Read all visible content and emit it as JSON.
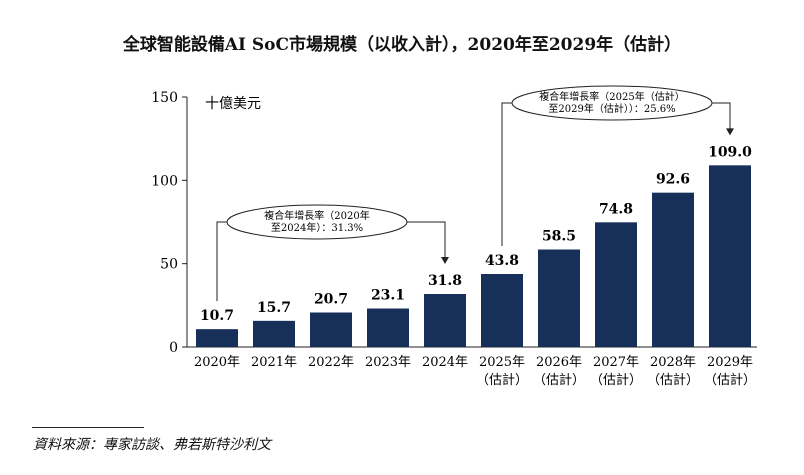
{
  "chart_data": {
    "type": "bar",
    "title": "全球智能設備AI SoC市場規模（以收入計），2020年至2029年（估計）",
    "unit_label": "十億美元",
    "categories": [
      [
        "2020年"
      ],
      [
        "2021年"
      ],
      [
        "2022年"
      ],
      [
        "2023年"
      ],
      [
        "2024年"
      ],
      [
        "2025年",
        "（估計）"
      ],
      [
        "2026年",
        "（估計）"
      ],
      [
        "2027年",
        "（估計）"
      ],
      [
        "2028年",
        "（估計）"
      ],
      [
        "2029年",
        "（估計）"
      ]
    ],
    "values": [
      10.7,
      15.7,
      20.7,
      23.1,
      31.8,
      43.8,
      58.5,
      74.8,
      92.6,
      109.0
    ],
    "value_labels": [
      "10.7",
      "15.7",
      "20.7",
      "23.1",
      "31.8",
      "43.8",
      "58.5",
      "74.8",
      "92.6",
      "109.0"
    ],
    "ylim": [
      0,
      150
    ],
    "yticks": [
      0,
      50,
      100,
      150
    ],
    "bar_color": "#16305a",
    "grid": false,
    "annotations": [
      {
        "lines": [
          "複合年增長率（2020年",
          "至2024年）：31.3%"
        ],
        "from_index": 0,
        "to_index": 4
      },
      {
        "lines": [
          "複合年增長率（2025年（估計）",
          "至2029年（估計））：25.6%"
        ],
        "from_index": 5,
        "to_index": 9
      }
    ]
  },
  "source": "資料來源：專家訪談、弗若斯特沙利文"
}
